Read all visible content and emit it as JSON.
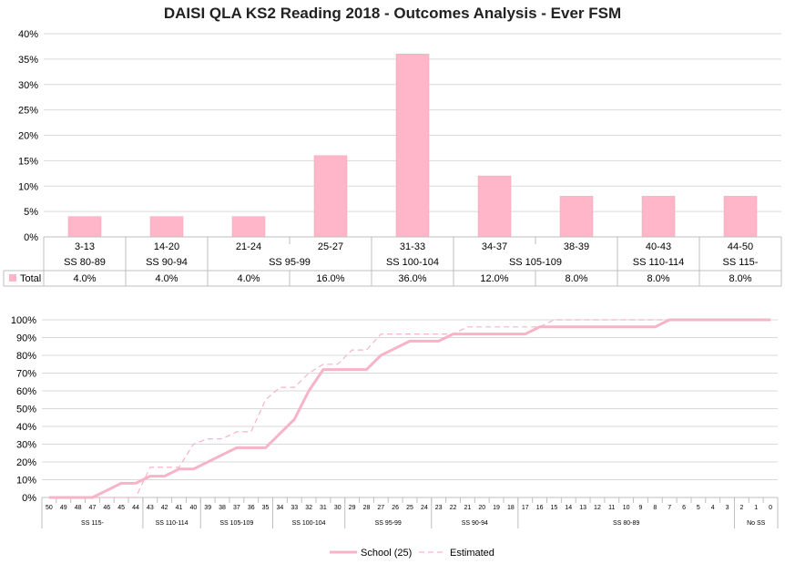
{
  "title": "DAISI QLA KS2 Reading 2018 - Outcomes Analysis - Ever FSM",
  "colors": {
    "bar": "#FFB6C8",
    "bar_edge": "#F3A3B8",
    "school": "#F7B4C6",
    "estimated": "#F7B4C6",
    "grid": "#D9D9D9",
    "axis": "#BFBFBF"
  },
  "chart_data": [
    {
      "type": "bar",
      "ylim": [
        0,
        40
      ],
      "yticks": [
        "0%",
        "5%",
        "10%",
        "15%",
        "20%",
        "25%",
        "30%",
        "35%",
        "40%"
      ],
      "categories": [
        "3-13",
        "14-20",
        "21-24",
        "25-27",
        "31-33",
        "34-37",
        "38-39",
        "40-43",
        "44-50"
      ],
      "groups": [
        {
          "label": "SS 80-89",
          "span": 1
        },
        {
          "label": "SS 90-94",
          "span": 1
        },
        {
          "label": "SS 95-99",
          "span": 2
        },
        {
          "label": "SS 100-104",
          "span": 1
        },
        {
          "label": "SS 105-109",
          "span": 2
        },
        {
          "label": "SS 110-114",
          "span": 1
        },
        {
          "label": "SS 115-",
          "span": 1
        }
      ],
      "series": [
        {
          "name": "Total",
          "values": [
            4,
            4,
            4,
            16,
            36,
            12,
            8,
            8,
            8
          ],
          "labels": [
            "4.0%",
            "4.0%",
            "4.0%",
            "16.0%",
            "36.0%",
            "12.0%",
            "8.0%",
            "8.0%",
            "8.0%"
          ]
        }
      ],
      "grid": true
    },
    {
      "type": "line",
      "ylim": [
        0,
        100
      ],
      "yticks": [
        "0%",
        "10%",
        "20%",
        "30%",
        "40%",
        "50%",
        "60%",
        "70%",
        "80%",
        "90%",
        "100%"
      ],
      "x": [
        "50",
        "49",
        "48",
        "47",
        "46",
        "45",
        "44",
        "43",
        "42",
        "41",
        "40",
        "39",
        "38",
        "37",
        "36",
        "35",
        "34",
        "33",
        "32",
        "31",
        "30",
        "29",
        "28",
        "27",
        "26",
        "25",
        "24",
        "23",
        "22",
        "21",
        "20",
        "19",
        "18",
        "17",
        "16",
        "15",
        "14",
        "13",
        "12",
        "11",
        "10",
        "9",
        "8",
        "7",
        "6",
        "5",
        "4",
        "3",
        "2",
        "1",
        "0"
      ],
      "groups": [
        {
          "label": "SS 115-",
          "span": 7
        },
        {
          "label": "SS 110-114",
          "span": 4
        },
        {
          "label": "SS 105-109",
          "span": 5
        },
        {
          "label": "SS 100-104",
          "span": 5
        },
        {
          "label": "SS 95-99",
          "span": 6
        },
        {
          "label": "SS 90-94",
          "span": 6
        },
        {
          "label": "SS 80-89",
          "span": 15
        },
        {
          "label": "No SS",
          "span": 3
        }
      ],
      "series": [
        {
          "name": "School (25)",
          "style": "solid",
          "values": [
            0,
            0,
            0,
            0,
            4,
            8,
            8,
            12,
            12,
            16,
            16,
            20,
            24,
            28,
            28,
            28,
            36,
            44,
            60,
            72,
            72,
            72,
            72,
            80,
            84,
            88,
            88,
            88,
            92,
            92,
            92,
            92,
            92,
            92,
            96,
            96,
            96,
            96,
            96,
            96,
            96,
            96,
            96,
            100,
            100,
            100,
            100,
            100,
            100,
            100,
            100
          ]
        },
        {
          "name": "Estimated",
          "style": "dashed",
          "values": [
            0,
            0,
            0,
            0,
            0,
            0,
            0,
            17,
            17,
            17,
            30,
            33,
            33,
            37,
            37,
            55,
            62,
            62,
            70,
            75,
            75,
            83,
            83,
            92,
            92,
            92,
            92,
            92,
            92,
            96,
            96,
            96,
            96,
            96,
            96,
            100,
            100,
            100,
            100,
            100,
            100,
            100,
            100,
            100,
            100,
            100,
            100,
            100,
            100,
            100,
            100
          ]
        }
      ],
      "legend": "bottom",
      "grid": true
    }
  ]
}
